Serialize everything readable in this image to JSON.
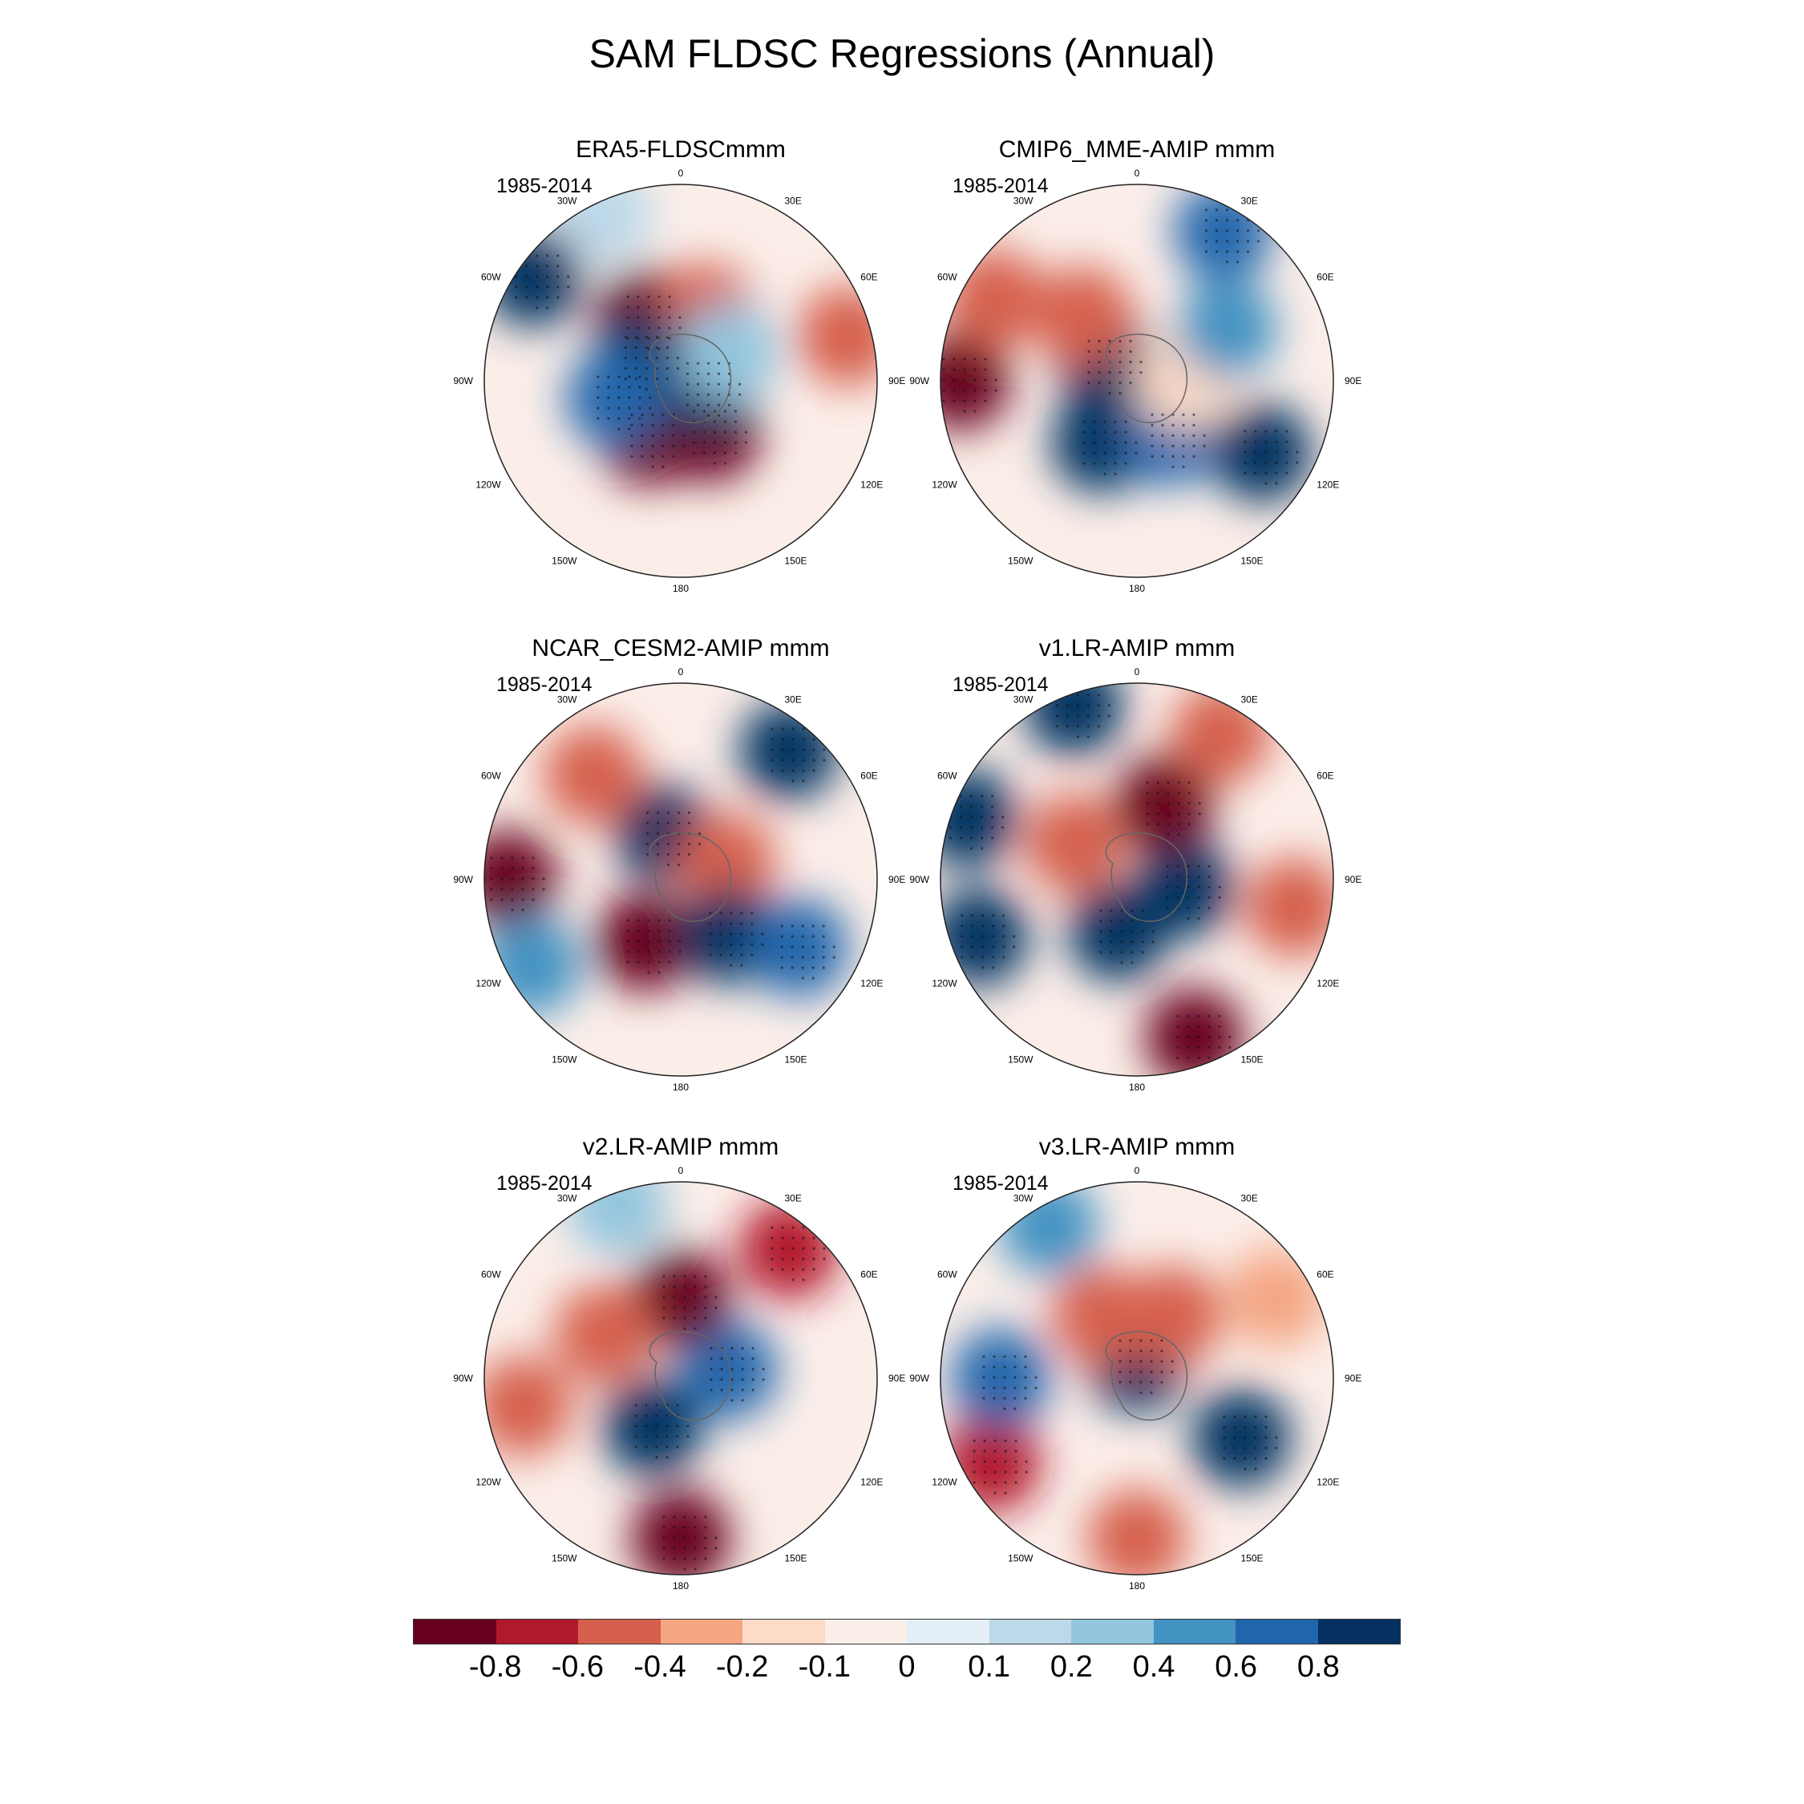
{
  "title": "SAM FLDSC Regressions (Annual)",
  "panels": [
    {
      "title": "ERA5-FLDSCmmm",
      "period": "1985-2014"
    },
    {
      "title": "CMIP6_MME-AMIP  mmm",
      "period": "1985-2014"
    },
    {
      "title": "NCAR_CESM2-AMIP  mmm",
      "period": "1985-2014"
    },
    {
      "title": "v1.LR-AMIP  mmm",
      "period": "1985-2014"
    },
    {
      "title": "v2.LR-AMIP  mmm",
      "period": "1985-2014"
    },
    {
      "title": "v3.LR-AMIP  mmm",
      "period": "1985-2014"
    }
  ],
  "longitude_labels": [
    "0",
    "30E",
    "60E",
    "90E",
    "120E",
    "150E",
    "180",
    "150W",
    "120W",
    "90W",
    "60W",
    "30W"
  ],
  "colorbar": {
    "colors": [
      "#67001f",
      "#b2182b",
      "#d6604d",
      "#f4a582",
      "#fddbc7",
      "#fbeee9",
      "#e3eef6",
      "#bcd9ea",
      "#92c5de",
      "#4393c3",
      "#2166ac",
      "#053061"
    ],
    "labels": [
      "-0.8",
      "-0.6",
      "-0.4",
      "-0.2",
      "-0.1",
      "0",
      "0.1",
      "0.2",
      "0.4",
      "0.6",
      "0.8"
    ]
  }
}
